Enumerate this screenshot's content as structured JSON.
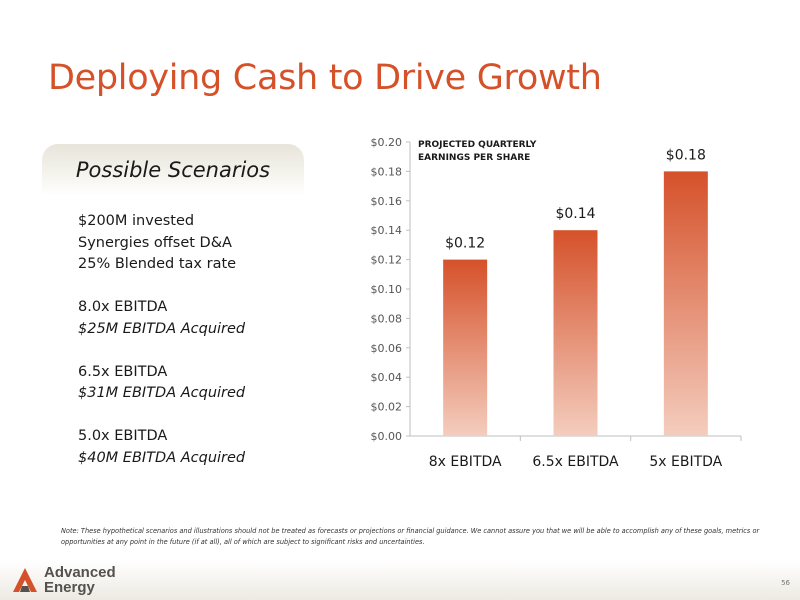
{
  "slide": {
    "title": "Deploying Cash to Drive Growth",
    "accent_color": "#d5512a",
    "page_number": "56"
  },
  "scenarios": {
    "header": "Possible Scenarios",
    "lines": [
      {
        "text": "$200M invested",
        "italic": false
      },
      {
        "text": "Synergies offset D&A",
        "italic": false
      },
      {
        "text": "25% Blended tax rate",
        "italic": false
      },
      {
        "text": "",
        "italic": false
      },
      {
        "text": "8.0x EBITDA",
        "italic": false
      },
      {
        "text": "$25M EBITDA Acquired",
        "italic": true
      },
      {
        "text": "",
        "italic": false
      },
      {
        "text": "6.5x EBITDA",
        "italic": false
      },
      {
        "text": "$31M EBITDA Acquired",
        "italic": true
      },
      {
        "text": "",
        "italic": false
      },
      {
        "text": "5.0x EBITDA",
        "italic": false
      },
      {
        "text": "$40M EBITDA Acquired",
        "italic": true
      }
    ]
  },
  "chart_data": {
    "type": "bar",
    "title": "PROJECTED QUARTERLY\nEARNINGS PER SHARE",
    "categories": [
      "8x EBITDA",
      "6.5x EBITDA",
      "5x EBITDA"
    ],
    "values": [
      0.12,
      0.14,
      0.18
    ],
    "data_labels": [
      "$0.12",
      "$0.14",
      "$0.18"
    ],
    "y_ticks": [
      "$0.00",
      "$0.02",
      "$0.04",
      "$0.06",
      "$0.08",
      "$0.10",
      "$0.12",
      "$0.14",
      "$0.16",
      "$0.18",
      "$0.20"
    ],
    "ylim": [
      0,
      0.2
    ],
    "xlabel": "",
    "ylabel": "",
    "grid": false,
    "bar_color_top": "#d5512a",
    "bar_color_bottom": "#f4cdbe"
  },
  "disclaimer": "Note: These hypothetical scenarios and illustrations should not be treated as forecasts or projections or financial guidance. We cannot assure you that we will be able to accomplish any of these goals, metrics or opportunities at any point in the future (if at all), all of which are subject to significant risks and uncertainties.",
  "footer": {
    "logo_line1": "Advanced",
    "logo_line2": "Energy",
    "logo_icon": "advanced-energy-logo-icon"
  }
}
